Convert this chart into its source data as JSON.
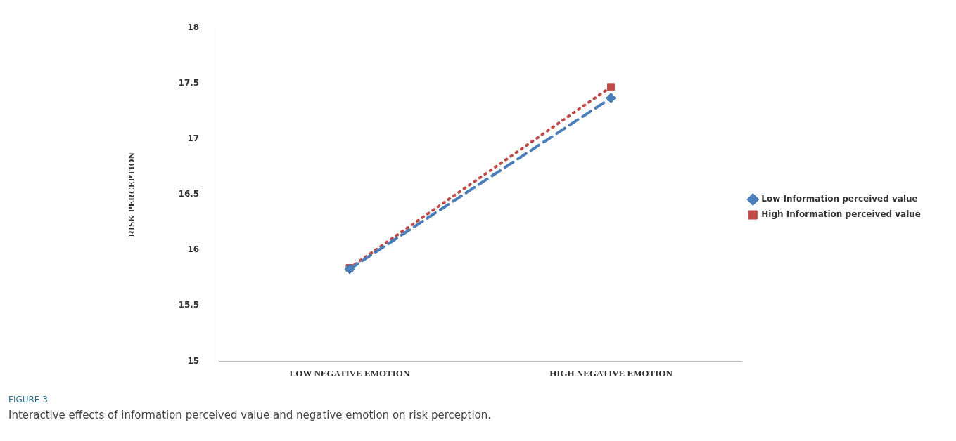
{
  "chart_data": {
    "type": "line",
    "ylabel": "RISK PERCEPTION",
    "categories": [
      "LOW NEGATIVE EMOTION",
      "HIGH NEGATIVE EMOTION"
    ],
    "series": [
      {
        "name": "Low Information perceived value",
        "color": "#4a7ebb",
        "values": [
          15.83,
          17.37
        ],
        "marker": "diamond",
        "line_style": "dashed"
      },
      {
        "name": "High Information perceived value",
        "color": "#be4b48",
        "values": [
          15.84,
          17.47
        ],
        "marker": "square",
        "line_style": "dotted"
      }
    ],
    "ylim": [
      15,
      18
    ],
    "yticks": [
      15,
      15.5,
      16,
      16.5,
      17,
      17.5,
      18
    ],
    "grid": false,
    "legend": "right",
    "annotations": [
      "FIGURE 3",
      "Interactive effects of information perceived value and negative emotion on risk perception."
    ]
  }
}
